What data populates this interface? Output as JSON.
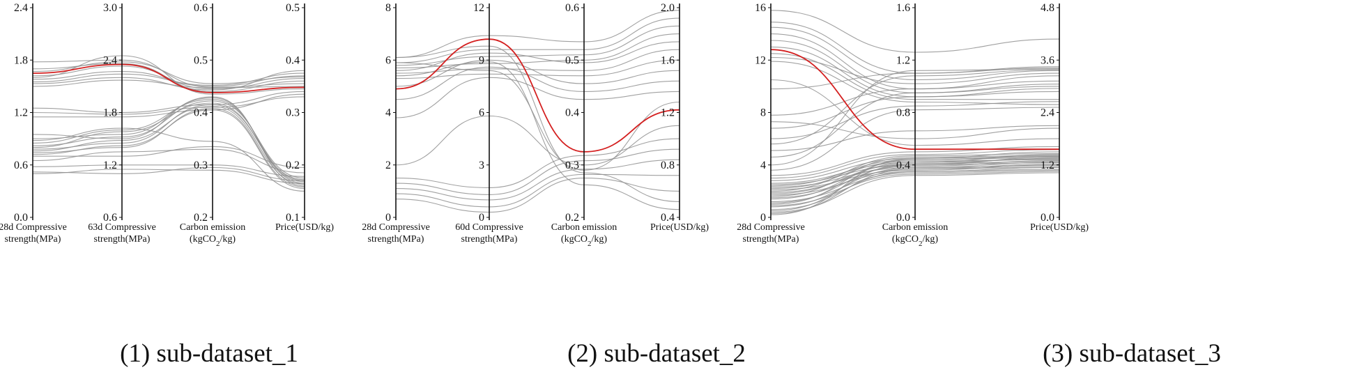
{
  "colors": {
    "line": "#8f8f8f",
    "highlight": "#d42020",
    "axis": "#111111",
    "text": "#111111"
  },
  "captions": [
    "(1) sub-dataset_1",
    "(2) sub-dataset_2",
    "(3) sub-dataset_3"
  ],
  "chart_data": [
    {
      "type": "parallel-coordinates",
      "title": "(1) sub-dataset_1",
      "axes": [
        {
          "label_lines": [
            "28d Compressive",
            "strength(MPa)"
          ],
          "range": [
            0.0,
            2.4
          ],
          "ticks": [
            "0.0",
            "0.6",
            "1.2",
            "1.8",
            "2.4"
          ]
        },
        {
          "label_lines": [
            "63d Compressive",
            "strength(MPa)"
          ],
          "range": [
            0.6,
            3.0
          ],
          "ticks": [
            "0.6",
            "1.2",
            "1.8",
            "2.4",
            "3.0"
          ]
        },
        {
          "label_lines": [
            "Carbon emission",
            "(kgCO2/kg)"
          ],
          "range": [
            0.2,
            0.6
          ],
          "ticks": [
            "0.2",
            "0.3",
            "0.4",
            "0.5",
            "0.6"
          ]
        },
        {
          "label_lines": [
            "Price(USD/kg)"
          ],
          "range": [
            0.1,
            0.5
          ],
          "ticks": [
            "0.1",
            "0.2",
            "0.3",
            "0.4",
            "0.5"
          ]
        }
      ],
      "highlight": [
        1.65,
        2.35,
        0.438,
        0.348
      ],
      "series": [
        [
          1.78,
          2.4,
          0.448,
          0.355
        ],
        [
          1.7,
          2.36,
          0.44,
          0.36
        ],
        [
          1.62,
          2.33,
          0.445,
          0.365
        ],
        [
          1.58,
          2.27,
          0.45,
          0.37
        ],
        [
          1.55,
          2.24,
          0.452,
          0.375
        ],
        [
          1.53,
          2.2,
          0.443,
          0.38
        ],
        [
          1.5,
          2.17,
          0.447,
          0.35
        ],
        [
          1.6,
          2.45,
          0.435,
          0.345
        ],
        [
          1.67,
          2.38,
          0.455,
          0.368
        ],
        [
          1.25,
          1.8,
          0.415,
          0.34
        ],
        [
          1.2,
          1.78,
          0.41,
          0.33
        ],
        [
          1.15,
          1.75,
          0.405,
          0.335
        ],
        [
          0.95,
          1.5,
          0.43,
          0.16
        ],
        [
          0.9,
          1.55,
          0.428,
          0.165
        ],
        [
          0.85,
          1.6,
          0.425,
          0.17
        ],
        [
          0.82,
          1.52,
          0.422,
          0.175
        ],
        [
          0.8,
          1.58,
          0.418,
          0.168
        ],
        [
          0.78,
          1.45,
          0.415,
          0.172
        ],
        [
          0.76,
          1.48,
          0.412,
          0.163
        ],
        [
          0.74,
          1.4,
          0.408,
          0.158
        ],
        [
          0.72,
          1.42,
          0.405,
          0.155
        ],
        [
          0.88,
          1.62,
          0.345,
          0.15
        ],
        [
          0.7,
          1.3,
          0.335,
          0.195
        ],
        [
          0.65,
          1.35,
          0.33,
          0.185
        ],
        [
          0.58,
          1.2,
          0.3,
          0.178
        ],
        [
          0.52,
          1.1,
          0.295,
          0.17
        ],
        [
          0.5,
          1.15,
          0.29,
          0.165
        ]
      ]
    },
    {
      "type": "parallel-coordinates",
      "title": "(2) sub-dataset_2",
      "axes": [
        {
          "label_lines": [
            "28d Compressive",
            "strength(MPa)"
          ],
          "range": [
            0,
            8
          ],
          "ticks": [
            "0",
            "2",
            "4",
            "6",
            "8"
          ]
        },
        {
          "label_lines": [
            "60d Compressive",
            "strength(MPa)"
          ],
          "range": [
            0,
            12
          ],
          "ticks": [
            "0",
            "3",
            "6",
            "9",
            "12"
          ]
        },
        {
          "label_lines": [
            "Carbon emission",
            "(kgCO2/kg)"
          ],
          "range": [
            0.2,
            0.6
          ],
          "ticks": [
            "0.2",
            "0.3",
            "0.4",
            "0.5",
            "0.6"
          ]
        },
        {
          "label_lines": [
            "Price(USD/kg)"
          ],
          "range": [
            0.4,
            2.0
          ],
          "ticks": [
            "0.4",
            "0.8",
            "1.2",
            "1.6",
            "2.0"
          ]
        }
      ],
      "highlight": [
        4.9,
        10.2,
        0.325,
        1.22
      ],
      "series": [
        [
          6.1,
          10.4,
          0.535,
          1.98
        ],
        [
          5.9,
          9.6,
          0.52,
          1.92
        ],
        [
          5.8,
          9.2,
          0.51,
          1.86
        ],
        [
          5.7,
          8.8,
          0.5,
          1.8
        ],
        [
          5.6,
          9.4,
          0.495,
          1.74
        ],
        [
          5.5,
          8.5,
          0.48,
          1.68
        ],
        [
          5.3,
          8.2,
          0.47,
          1.6
        ],
        [
          5.0,
          9.0,
          0.455,
          1.52
        ],
        [
          4.5,
          8.6,
          0.44,
          1.44
        ],
        [
          3.8,
          8.0,
          0.425,
          1.36
        ],
        [
          5.9,
          8.4,
          0.29,
          1.28
        ],
        [
          2.0,
          5.8,
          0.3,
          1.1
        ],
        [
          1.5,
          1.7,
          0.318,
          1.0
        ],
        [
          1.3,
          1.3,
          0.308,
          0.92
        ],
        [
          1.1,
          1.0,
          0.292,
          0.84
        ],
        [
          0.9,
          0.6,
          0.282,
          0.72
        ],
        [
          0.7,
          0.3,
          0.275,
          0.6
        ],
        [
          6.1,
          9.8,
          0.285,
          0.52
        ],
        [
          5.4,
          8.9,
          0.262,
          0.46
        ]
      ]
    },
    {
      "type": "parallel-coordinates",
      "title": "(3) sub-dataset_3",
      "axes": [
        {
          "label_lines": [
            "28d Compressive",
            "strength(MPa)"
          ],
          "range": [
            0,
            16
          ],
          "ticks": [
            "0",
            "4",
            "8",
            "12",
            "16"
          ]
        },
        {
          "label_lines": [
            "Carbon emission",
            "(kgCO2/kg)"
          ],
          "range": [
            0.0,
            1.6
          ],
          "ticks": [
            "0.0",
            "0.4",
            "0.8",
            "1.2",
            "1.6"
          ]
        },
        {
          "label_lines": [
            "Price(USD/kg)"
          ],
          "range": [
            0.0,
            4.8
          ],
          "ticks": [
            "0.0",
            "1.2",
            "2.4",
            "3.6",
            "4.8"
          ]
        }
      ],
      "highlight": [
        12.8,
        0.52,
        1.56
      ],
      "series": [
        [
          15.8,
          1.26,
          4.08
        ],
        [
          14.9,
          1.1,
          3.42
        ],
        [
          14.5,
          1.05,
          3.36
        ],
        [
          14.0,
          0.98,
          3.24
        ],
        [
          13.5,
          0.95,
          3.0
        ],
        [
          13.0,
          0.92,
          2.88
        ],
        [
          12.5,
          0.9,
          2.7
        ],
        [
          12.2,
          1.02,
          3.3
        ],
        [
          11.9,
          0.88,
          2.58
        ],
        [
          10.5,
          0.55,
          1.8
        ],
        [
          9.8,
          1.1,
          3.45
        ],
        [
          7.8,
          0.98,
          3.12
        ],
        [
          7.3,
          0.6,
          2.04
        ],
        [
          6.8,
          0.92,
          2.95
        ],
        [
          6.0,
          0.85,
          2.65
        ],
        [
          5.6,
          1.08,
          3.38
        ],
        [
          5.1,
          0.66,
          2.1
        ],
        [
          4.6,
          0.95,
          3.05
        ],
        [
          4.0,
          1.12,
          3.4
        ],
        [
          3.6,
          0.82,
          2.52
        ],
        [
          3.2,
          0.5,
          1.62
        ],
        [
          3.0,
          0.48,
          1.55
        ],
        [
          2.8,
          0.45,
          1.5
        ],
        [
          2.6,
          0.42,
          1.44
        ],
        [
          2.5,
          0.4,
          1.38
        ],
        [
          2.4,
          0.44,
          1.4
        ],
        [
          2.3,
          0.38,
          1.26
        ],
        [
          2.2,
          0.43,
          1.32
        ],
        [
          2.1,
          0.36,
          1.2
        ],
        [
          2.0,
          0.47,
          1.46
        ],
        [
          1.9,
          0.39,
          1.3
        ],
        [
          1.8,
          0.41,
          1.35
        ],
        [
          1.7,
          0.35,
          1.14
        ],
        [
          1.6,
          0.46,
          1.42
        ],
        [
          1.5,
          0.37,
          1.22
        ],
        [
          1.4,
          0.42,
          1.33
        ],
        [
          1.2,
          0.34,
          1.08
        ],
        [
          1.1,
          0.4,
          1.25
        ],
        [
          1.0,
          0.44,
          1.37
        ],
        [
          0.9,
          0.33,
          1.05
        ],
        [
          0.8,
          0.38,
          1.18
        ],
        [
          0.6,
          0.35,
          1.1
        ],
        [
          0.5,
          0.41,
          1.28
        ],
        [
          0.4,
          0.32,
          1.02
        ],
        [
          0.3,
          0.37,
          1.15
        ],
        [
          0.2,
          0.45,
          1.4
        ]
      ]
    }
  ]
}
